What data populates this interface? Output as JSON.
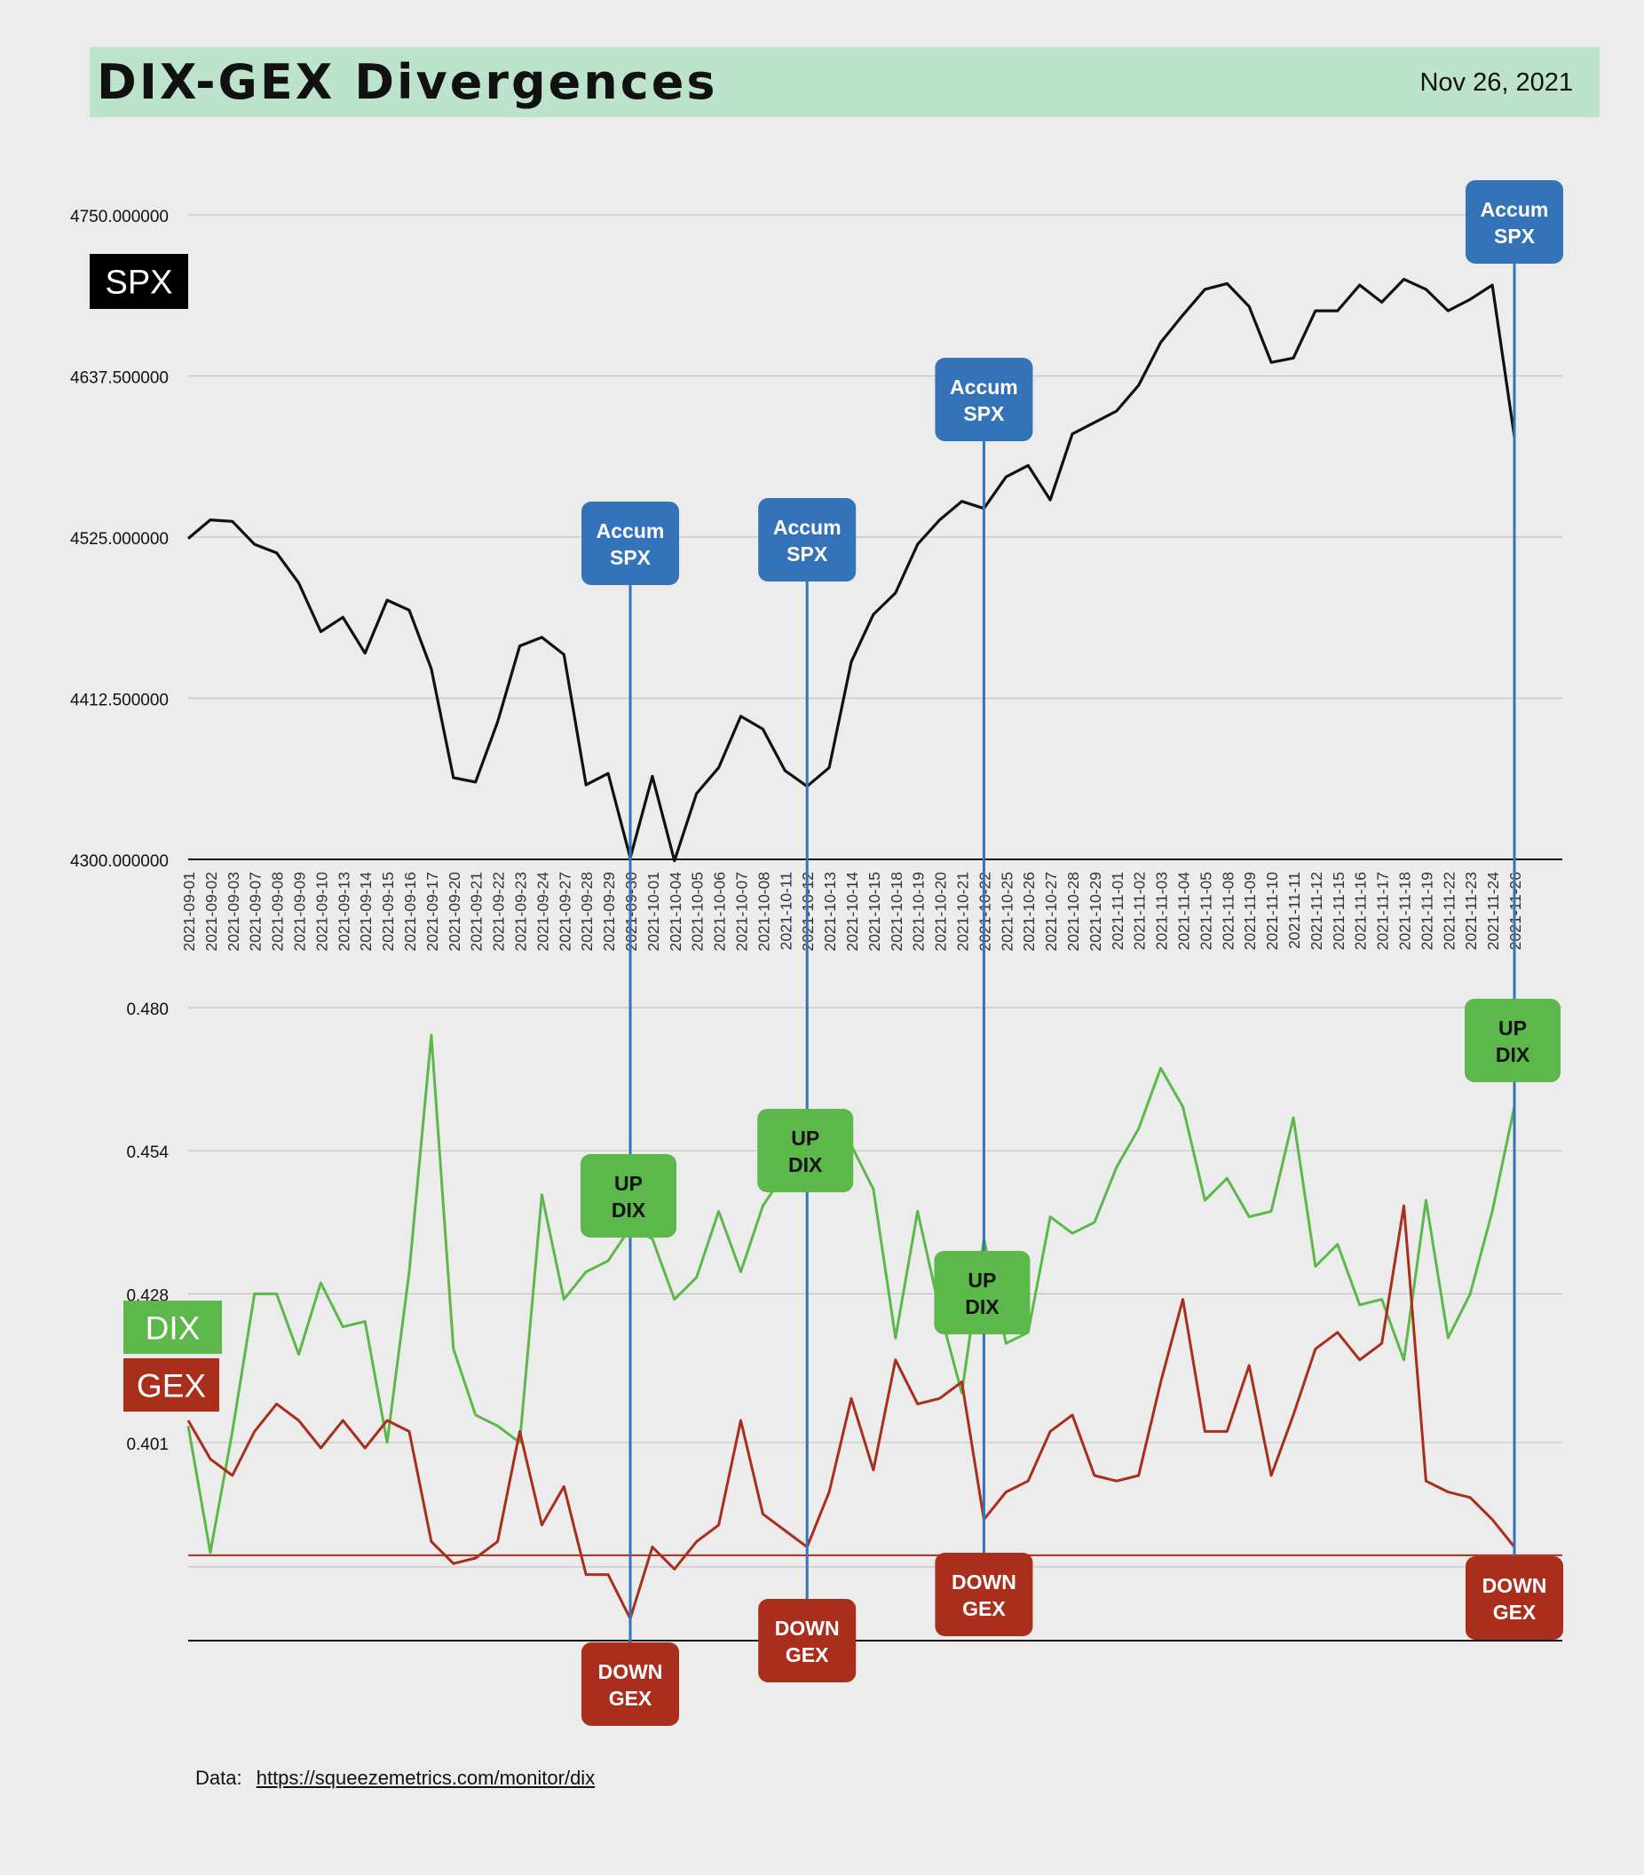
{
  "header": {
    "title": "DIX-GEX Divergences",
    "date": "Nov 26, 2021"
  },
  "footer": {
    "label": "Data:",
    "link": "https://squeezemetrics.com/monitor/dix"
  },
  "colors": {
    "spx": "#111111",
    "dix": "#5cb84a",
    "gex": "#a92e1c",
    "accum_box": "#3473b7",
    "up_box": "#5cb84a",
    "down_box": "#a92e1c",
    "header_bg": "#bde3cc"
  },
  "chart_data": [
    {
      "type": "line",
      "panel": "top",
      "label_box": "SPX",
      "ylim": [
        4300,
        4750
      ],
      "y_ticks": [
        "4750.000000",
        "4637.500000",
        "4525.000000",
        "4412.500000",
        "4300.000000"
      ],
      "y_tick_values": [
        4750,
        4637.5,
        4525,
        4412.5,
        4300
      ],
      "grid": true,
      "x": [
        "2021-09-01",
        "2021-09-02",
        "2021-09-03",
        "2021-09-07",
        "2021-09-08",
        "2021-09-09",
        "2021-09-10",
        "2021-09-13",
        "2021-09-14",
        "2021-09-15",
        "2021-09-16",
        "2021-09-17",
        "2021-09-20",
        "2021-09-21",
        "2021-09-22",
        "2021-09-23",
        "2021-09-24",
        "2021-09-27",
        "2021-09-28",
        "2021-09-29",
        "2021-09-30",
        "2021-10-01",
        "2021-10-04",
        "2021-10-05",
        "2021-10-06",
        "2021-10-07",
        "2021-10-08",
        "2021-10-11",
        "2021-10-12",
        "2021-10-13",
        "2021-10-14",
        "2021-10-15",
        "2021-10-18",
        "2021-10-19",
        "2021-10-20",
        "2021-10-21",
        "2021-10-22",
        "2021-10-25",
        "2021-10-26",
        "2021-10-27",
        "2021-10-28",
        "2021-10-29",
        "2021-11-01",
        "2021-11-02",
        "2021-11-03",
        "2021-11-04",
        "2021-11-05",
        "2021-11-08",
        "2021-11-09",
        "2021-11-10",
        "2021-11-11",
        "2021-11-12",
        "2021-11-15",
        "2021-11-16",
        "2021-11-17",
        "2021-11-18",
        "2021-11-19",
        "2021-11-22",
        "2021-11-23",
        "2021-11-24",
        "2021-11-26"
      ],
      "series": [
        {
          "values": [
            4524,
            4537,
            4536,
            4520,
            4514,
            4493,
            4459,
            4469,
            4444,
            4481,
            4474,
            4433,
            4357,
            4354,
            4396,
            4449,
            4455,
            4443,
            4352,
            4360,
            4301,
            4358,
            4299,
            4346,
            4364,
            4400,
            4391,
            4362,
            4351,
            4364,
            4438,
            4471,
            4486,
            4520,
            4537,
            4550,
            4545,
            4567,
            4575,
            4551,
            4597,
            4605,
            4613,
            4631,
            4661,
            4680,
            4698,
            4702,
            4686,
            4647,
            4650,
            4683,
            4683,
            4701,
            4689,
            4705,
            4698,
            4683,
            4691,
            4701,
            4595
          ]
        }
      ],
      "annotations": [
        {
          "text": [
            "Accum",
            "SPX"
          ],
          "x": "2021-09-30"
        },
        {
          "text": [
            "Accum",
            "SPX"
          ],
          "x": "2021-10-12"
        },
        {
          "text": [
            "Accum",
            "SPX"
          ],
          "x": "2021-10-22"
        },
        {
          "text": [
            "Accum",
            "SPX"
          ],
          "x": "2021-11-26"
        }
      ]
    },
    {
      "type": "line",
      "panel": "bottom",
      "ylim": [
        0.365,
        0.48
      ],
      "y_ticks": [
        "0.480",
        "0.454",
        "0.428",
        "0.401"
      ],
      "y_tick_values": [
        0.48,
        0.454,
        0.428,
        0.401
      ],
      "grid": true,
      "reference_line": 0.3805,
      "x": [
        "2021-09-01",
        "2021-09-02",
        "2021-09-03",
        "2021-09-07",
        "2021-09-08",
        "2021-09-09",
        "2021-09-10",
        "2021-09-13",
        "2021-09-14",
        "2021-09-15",
        "2021-09-16",
        "2021-09-17",
        "2021-09-20",
        "2021-09-21",
        "2021-09-22",
        "2021-09-23",
        "2021-09-24",
        "2021-09-27",
        "2021-09-28",
        "2021-09-29",
        "2021-09-30",
        "2021-10-01",
        "2021-10-04",
        "2021-10-05",
        "2021-10-06",
        "2021-10-07",
        "2021-10-08",
        "2021-10-11",
        "2021-10-12",
        "2021-10-13",
        "2021-10-14",
        "2021-10-15",
        "2021-10-18",
        "2021-10-19",
        "2021-10-20",
        "2021-10-21",
        "2021-10-22",
        "2021-10-25",
        "2021-10-26",
        "2021-10-27",
        "2021-10-28",
        "2021-10-29",
        "2021-11-01",
        "2021-11-02",
        "2021-11-03",
        "2021-11-04",
        "2021-11-05",
        "2021-11-08",
        "2021-11-09",
        "2021-11-10",
        "2021-11-11",
        "2021-11-12",
        "2021-11-15",
        "2021-11-16",
        "2021-11-17",
        "2021-11-18",
        "2021-11-19",
        "2021-11-22",
        "2021-11-23",
        "2021-11-24",
        "2021-11-26"
      ],
      "series": [
        {
          "name": "DIX",
          "label_box": "DIX",
          "values": [
            0.404,
            0.381,
            0.403,
            0.428,
            0.428,
            0.417,
            0.43,
            0.422,
            0.423,
            0.401,
            0.432,
            0.475,
            0.418,
            0.406,
            0.404,
            0.401,
            0.446,
            0.427,
            0.432,
            0.434,
            0.44,
            0.438,
            0.427,
            0.431,
            0.443,
            0.432,
            0.444,
            0.45,
            0.452,
            0.454,
            0.455,
            0.447,
            0.42,
            0.443,
            0.425,
            0.41,
            0.438,
            0.419,
            0.421,
            0.442,
            0.439,
            0.441,
            0.451,
            0.458,
            0.469,
            0.462,
            0.445,
            0.449,
            0.442,
            0.443,
            0.46,
            0.433,
            0.437,
            0.426,
            0.427,
            0.416,
            0.445,
            0.42,
            0.428,
            0.443,
            0.462
          ]
        },
        {
          "name": "GEX",
          "label_box": "GEX",
          "values": [
            0.405,
            0.398,
            0.395,
            0.403,
            0.408,
            0.405,
            0.4,
            0.405,
            0.4,
            0.405,
            0.403,
            0.383,
            0.379,
            0.38,
            0.383,
            0.403,
            0.386,
            0.393,
            0.377,
            0.377,
            0.369,
            0.382,
            0.378,
            0.383,
            0.386,
            0.405,
            0.388,
            0.385,
            0.382,
            0.392,
            0.409,
            0.396,
            0.416,
            0.408,
            0.409,
            0.412,
            0.387,
            0.392,
            0.394,
            0.403,
            0.406,
            0.395,
            0.394,
            0.395,
            0.412,
            0.427,
            0.403,
            0.403,
            0.415,
            0.395,
            0.406,
            0.418,
            0.421,
            0.416,
            0.419,
            0.444,
            0.394,
            0.392,
            0.391,
            0.387,
            0.382
          ]
        }
      ],
      "annotations": [
        {
          "text": [
            "UP",
            "DIX"
          ],
          "x": "2021-09-30",
          "kind": "up"
        },
        {
          "text": [
            "UP",
            "DIX"
          ],
          "x": "2021-10-12",
          "kind": "up"
        },
        {
          "text": [
            "UP",
            "DIX"
          ],
          "x": "2021-10-22",
          "kind": "up"
        },
        {
          "text": [
            "UP",
            "DIX"
          ],
          "x": "2021-11-26",
          "kind": "up"
        },
        {
          "text": [
            "DOWN",
            "GEX"
          ],
          "x": "2021-09-30",
          "kind": "down"
        },
        {
          "text": [
            "DOWN",
            "GEX"
          ],
          "x": "2021-10-12",
          "kind": "down"
        },
        {
          "text": [
            "DOWN",
            "GEX"
          ],
          "x": "2021-10-22",
          "kind": "down"
        },
        {
          "text": [
            "DOWN",
            "GEX"
          ],
          "x": "2021-11-26",
          "kind": "down"
        }
      ]
    }
  ]
}
